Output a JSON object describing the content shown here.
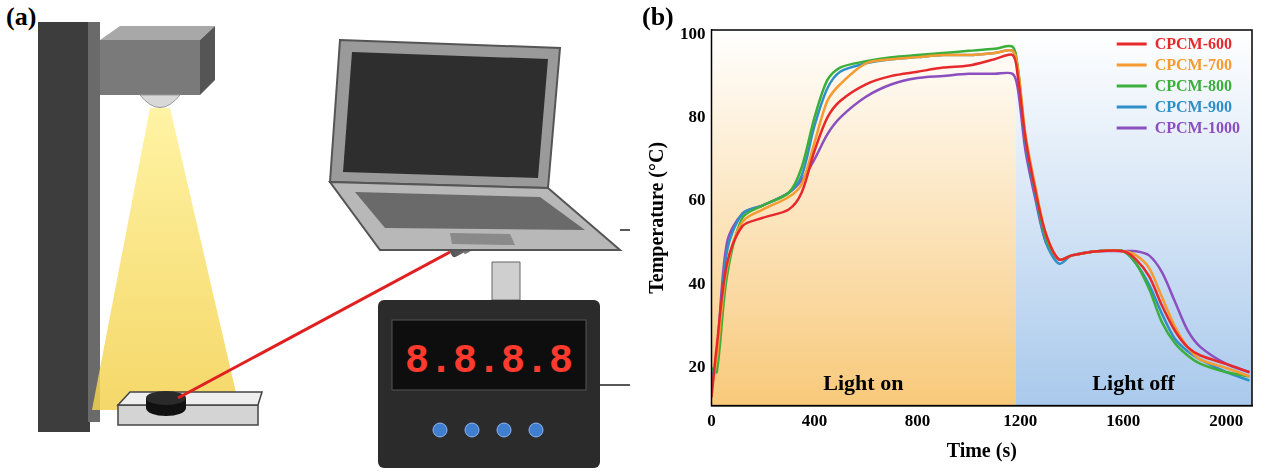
{
  "diagram": {
    "label": "(a)",
    "display": "8.8.8.8"
  },
  "chart_data": {
    "label": "(b)",
    "type": "line",
    "x_label": "Time (s)",
    "y_label": "Temperature (°C)",
    "x": [
      0,
      20,
      60,
      120,
      200,
      300,
      350,
      400,
      450,
      500,
      600,
      700,
      800,
      900,
      1000,
      1100,
      1170,
      1190,
      1220,
      1260,
      1300,
      1350,
      1400,
      1500,
      1600,
      1650,
      1700,
      1750,
      1800,
      1850,
      1900,
      2000,
      2090
    ],
    "series": [
      {
        "name": "CPCM-600",
        "color": "#e8292c",
        "values": [
          13,
          25,
          45,
          54,
          56,
          58,
          62,
          72,
          80,
          84,
          88,
          90,
          91,
          92,
          92.5,
          94,
          95,
          90,
          75,
          62,
          52,
          46,
          47,
          48,
          48,
          46,
          42,
          35,
          29,
          25,
          23,
          21,
          19
        ]
      },
      {
        "name": "CPCM-700",
        "color": "#f59b2f",
        "values": [
          15,
          22,
          44,
          55,
          58,
          61,
          64,
          74,
          84,
          88,
          93,
          94,
          94.5,
          95,
          95,
          95.5,
          96,
          92,
          76,
          63,
          52,
          46,
          47,
          48,
          48,
          47,
          44,
          37,
          30,
          25,
          22,
          20,
          18
        ]
      },
      {
        "name": "CPCM-800",
        "color": "#3cae3c",
        "values": [
          20,
          19,
          42,
          56,
          59,
          62,
          68,
          80,
          89,
          92,
          93.5,
          94.5,
          95,
          95.5,
          96,
          96.5,
          97,
          92,
          75,
          62,
          51,
          46,
          47,
          48,
          48,
          45,
          39,
          31,
          26,
          23,
          21,
          19,
          18
        ]
      },
      {
        "name": "CPCM-900",
        "color": "#2f8fc7",
        "values": [
          18,
          21,
          48,
          57,
          59,
          62,
          66,
          78,
          87,
          91,
          93,
          94,
          94.5,
          95,
          95,
          95.5,
          96,
          91,
          74,
          61,
          50,
          45,
          47,
          48,
          48,
          45,
          40,
          33,
          27,
          24,
          22,
          19,
          17
        ]
      },
      {
        "name": "CPCM-1000",
        "color": "#8b4fc0",
        "values": [
          16,
          23,
          50,
          57,
          59,
          62,
          65,
          70,
          76,
          80,
          85,
          88,
          89.5,
          90,
          90.5,
          90.5,
          90.5,
          87,
          72,
          60,
          50,
          46,
          47,
          48,
          48,
          48,
          47,
          43,
          36,
          29,
          25,
          21,
          19
        ]
      }
    ],
    "xlim": [
      0,
      2100
    ],
    "xticks": [
      0,
      400,
      800,
      1200,
      1600,
      2000
    ],
    "ylim": [
      11,
      101
    ],
    "yticks": [
      20,
      40,
      60,
      80,
      100
    ],
    "grid": false,
    "legend": "upper right",
    "regions": [
      {
        "text": "Light on",
        "from": 0,
        "to": 1180,
        "color": "#f8c97a"
      },
      {
        "text": "Light off",
        "from": 1180,
        "to": 2100,
        "color": "#a9c9ec"
      }
    ]
  }
}
